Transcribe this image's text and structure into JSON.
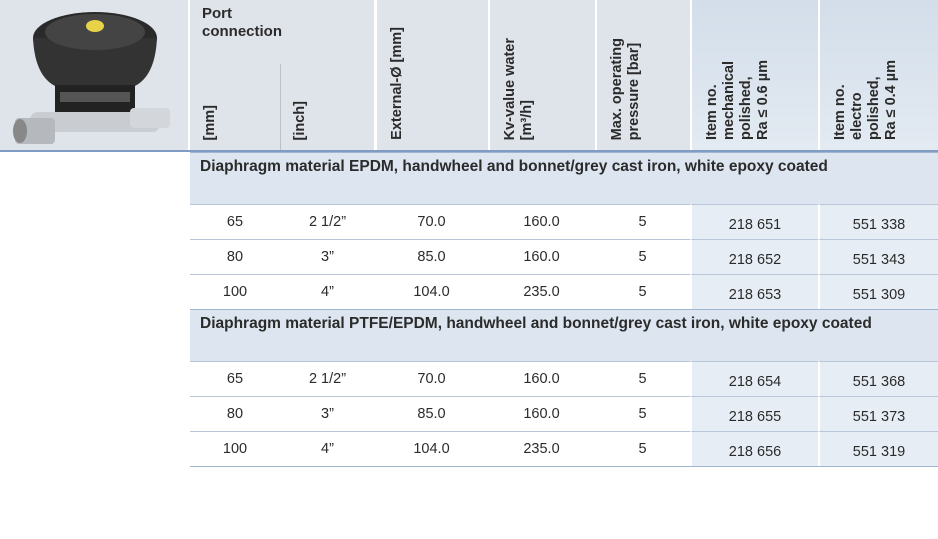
{
  "header": {
    "port_connection": [
      "Port",
      "connection"
    ],
    "columns": [
      [
        "[mm]"
      ],
      [
        "[inch]"
      ],
      [
        "External-Ø [mm]"
      ],
      [
        "Kv-value water",
        "[m³/h]"
      ],
      [
        "Max. operating",
        "pressure [bar]"
      ],
      [
        "Item no.",
        "mechanical",
        "polished,",
        "Ra ≤ 0.6 µm"
      ],
      [
        "Item no.",
        "electro",
        "polished,",
        "Ra ≤ 0.4 µm"
      ]
    ]
  },
  "sections": [
    {
      "title": "Diaphragm material EPDM, handwheel and bonnet/grey cast iron, white epoxy coated",
      "rows": [
        [
          "65",
          "2 1/2”",
          "70.0",
          "160.0",
          "5",
          "218 651",
          "551 338"
        ],
        [
          "80",
          "3”",
          "85.0",
          "160.0",
          "5",
          "218 652",
          "551 343"
        ],
        [
          "100",
          "4”",
          "104.0",
          "235.0",
          "5",
          "218 653",
          "551 309"
        ]
      ]
    },
    {
      "title": "Diaphragm material PTFE/EPDM, handwheel and bonnet/grey cast iron, white epoxy coated",
      "rows": [
        [
          "65",
          "2 1/2”",
          "70.0",
          "160.0",
          "5",
          "218 654",
          "551 368"
        ],
        [
          "80",
          "3”",
          "85.0",
          "160.0",
          "5",
          "218 655",
          "551 373"
        ],
        [
          "100",
          "4”",
          "104.0",
          "235.0",
          "5",
          "218 656",
          "551 319"
        ]
      ]
    }
  ]
}
